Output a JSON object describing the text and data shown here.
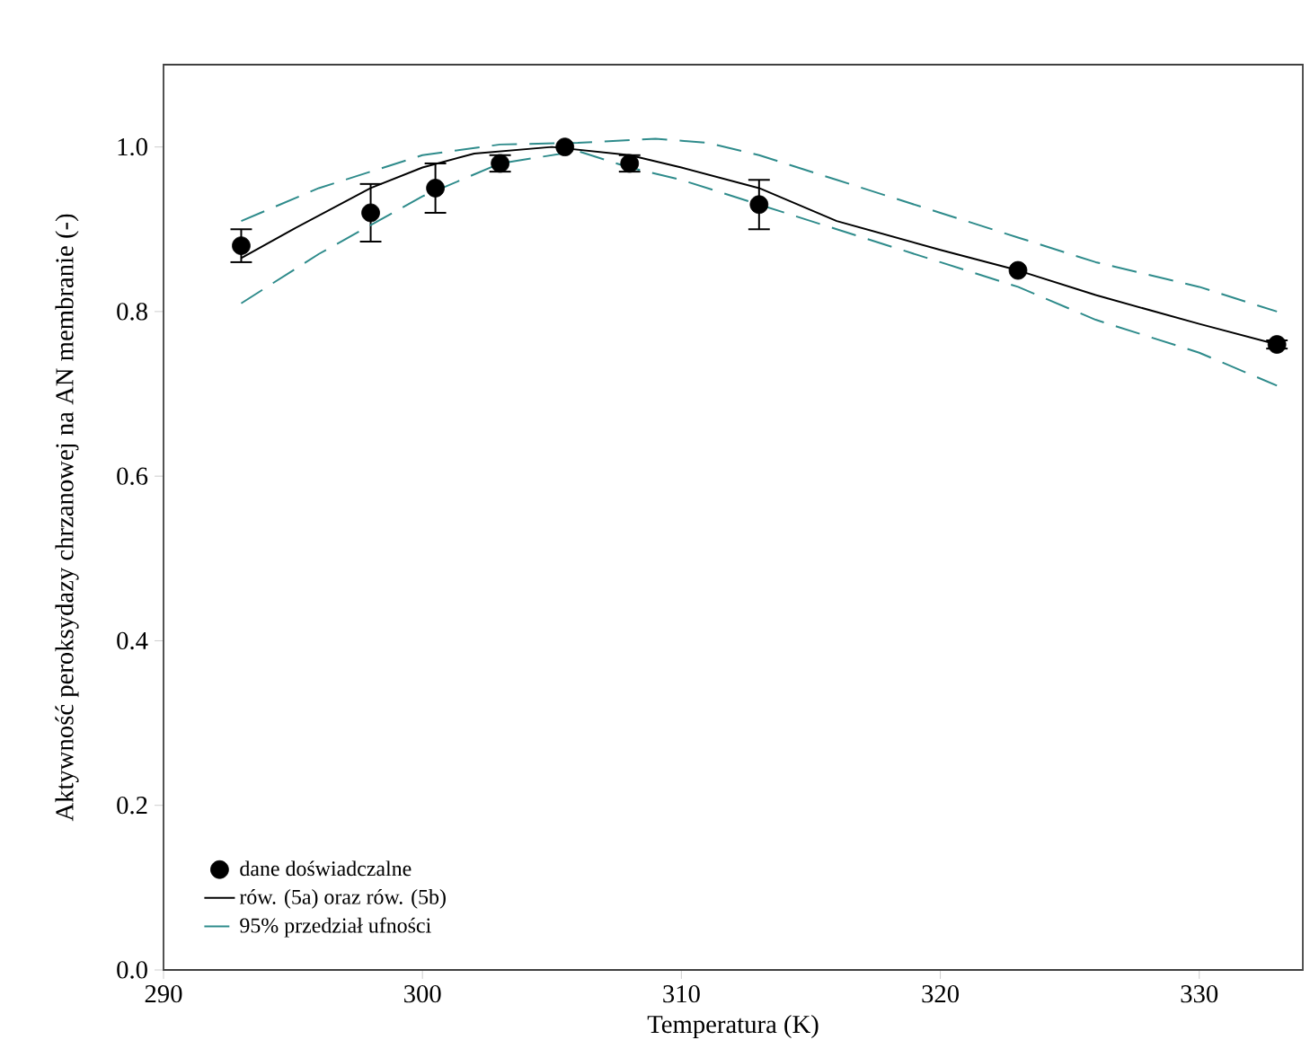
{
  "chart_data": {
    "type": "scatter",
    "xlabel": "Temperatura (K)",
    "ylabel": "Aktywność peroksydazy chrzanowej na AN membranie  (-)",
    "xlim": [
      290,
      334
    ],
    "ylim": [
      0,
      1.1
    ],
    "xticks": [
      290,
      300,
      310,
      320,
      330
    ],
    "yticks": [
      {
        "value": 0,
        "label": "0.0"
      },
      0.2,
      0.4,
      0.6,
      0.8,
      {
        "value": 1,
        "label": "1.0"
      }
    ],
    "legend": "bottom left",
    "grid": false,
    "series": [
      {
        "name": "dane doświadczalne",
        "color": "#000000",
        "x": [
          293,
          298,
          300.5,
          303,
          305.5,
          308,
          313,
          323,
          333
        ],
        "values": [
          0.88,
          0.92,
          0.95,
          0.98,
          1.0,
          0.98,
          0.93,
          0.85,
          0.76
        ],
        "errors": [
          0.02,
          0.035,
          0.03,
          0.01,
          null,
          0.01,
          0.03,
          null,
          0.005
        ]
      },
      {
        "name": "rów. (5a) oraz rów. (5b)",
        "type": "line",
        "marker": "none",
        "line_style": "solid",
        "color": "#000000",
        "x": [
          293,
          295,
          298,
          300,
          302,
          305,
          308,
          310,
          313,
          316,
          320,
          323,
          326,
          330,
          333
        ],
        "values": [
          0.865,
          0.9,
          0.95,
          0.975,
          0.992,
          1.0,
          0.99,
          0.975,
          0.95,
          0.91,
          0.875,
          0.85,
          0.82,
          0.785,
          0.76
        ]
      },
      {
        "name": "95% przedział ufności",
        "type": "line",
        "marker": "none",
        "line_style": "dashed",
        "color": "#2e8b8b",
        "x": [
          293,
          296,
          300,
          303,
          306,
          309,
          311,
          313,
          316,
          320,
          323,
          326,
          330,
          333
        ],
        "values": [
          0.91,
          0.95,
          0.99,
          1.003,
          1.005,
          1.01,
          1.005,
          0.99,
          0.96,
          0.92,
          0.89,
          0.86,
          0.83,
          0.8
        ]
      },
      {
        "type": "line",
        "marker": "none",
        "line_style": "dashed",
        "color": "#2e8b8b",
        "x": [
          293,
          296,
          300,
          303,
          306,
          308,
          310,
          313,
          316,
          320,
          323,
          326,
          330,
          333
        ],
        "values": [
          0.81,
          0.87,
          0.94,
          0.98,
          0.995,
          0.975,
          0.96,
          0.93,
          0.9,
          0.86,
          0.83,
          0.79,
          0.75,
          0.71
        ]
      }
    ]
  }
}
